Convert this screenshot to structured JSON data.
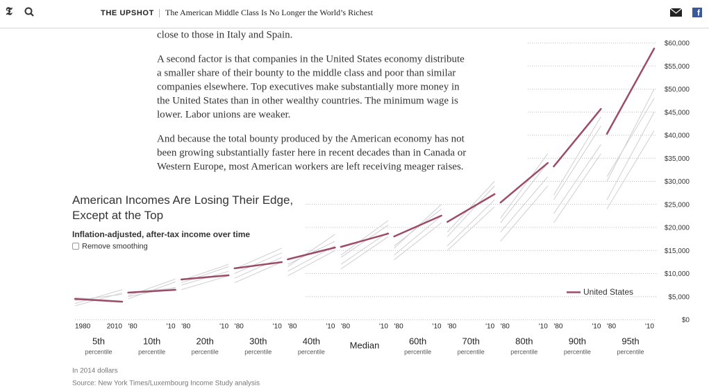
{
  "header": {
    "section": "THE UPSHOT",
    "headline": "The American Middle Class Is No Longer the World’s Richest"
  },
  "article": {
    "paragraphs": [
      [
        "close to those in Italy and Spain."
      ],
      [
        "A second factor is that companies in the United States economy distribute",
        "a smaller share of their bounty to the middle class and poor than similar",
        "companies elsewhere. Top executives make substantially more money in",
        "the United States than in other wealthy countries. The minimum wage is",
        "lower. Labor unions are weaker."
      ],
      [
        "And because the total bounty produced by the American economy has not",
        "been growing substantially faster here in recent decades than in Canada or",
        "Western Europe, most American workers are left receiving meager raises."
      ]
    ]
  },
  "chart_data": {
    "type": "small-multiples-line",
    "title": "American Incomes Are Losing Their Edge, Except at the Top",
    "subtitle": "Inflation-adjusted, after-tax income over time",
    "toggle": "Remove smoothing",
    "legend": "United States",
    "note": "In 2014 dollars",
    "source": "Source: New York Times/Luxembourg Income Study analysis",
    "us_color": "#9c4b69",
    "other_color": "#cfcfcf",
    "ylim": [
      0,
      60000
    ],
    "yticks": [
      {
        "value": 0,
        "label": "$0"
      },
      {
        "value": 5000,
        "label": "$5,000"
      },
      {
        "value": 10000,
        "label": "$10,000"
      },
      {
        "value": 15000,
        "label": "$15,000"
      },
      {
        "value": 20000,
        "label": "$20,000"
      },
      {
        "value": 25000,
        "label": "$25,000"
      },
      {
        "value": 30000,
        "label": "$30,000"
      },
      {
        "value": 35000,
        "label": "$35,000"
      },
      {
        "value": 40000,
        "label": "$40,000"
      },
      {
        "value": 45000,
        "label": "$45,000"
      },
      {
        "value": 50000,
        "label": "$50,000"
      },
      {
        "value": 55000,
        "label": "$55,000"
      },
      {
        "value": 60000,
        "label": "$60,000"
      }
    ],
    "grid": true,
    "x": [
      1980,
      2010
    ],
    "panels": [
      {
        "label": "5th",
        "sublabel": "percentile",
        "xticks": [
          {
            "value": 1980,
            "label": "1980"
          },
          {
            "value": 2010,
            "label": "2010"
          }
        ],
        "united_states": [
          4500,
          3900
        ],
        "others": [
          [
            4200,
            5500
          ],
          [
            3500,
            6500
          ],
          [
            4800,
            4000
          ],
          [
            3000,
            5800
          ]
        ]
      },
      {
        "label": "10th",
        "sublabel": "percentile",
        "xticks": [
          {
            "value": 1980,
            "label": "'80"
          },
          {
            "value": 2010,
            "label": "'10"
          }
        ],
        "united_states": [
          5860,
          6470
        ],
        "others": [
          [
            5000,
            7000
          ],
          [
            4500,
            8200
          ],
          [
            6000,
            6800
          ],
          [
            5200,
            8800
          ]
        ]
      },
      {
        "label": "20th",
        "sublabel": "percentile",
        "xticks": [
          {
            "value": 1980,
            "label": "'80"
          },
          {
            "value": 2010,
            "label": "'10"
          }
        ],
        "united_states": [
          8720,
          9620
        ],
        "others": [
          [
            7500,
            10500
          ],
          [
            8000,
            11500
          ],
          [
            6500,
            9500
          ],
          [
            8500,
            12000
          ]
        ]
      },
      {
        "label": "30th",
        "sublabel": "percentile",
        "xticks": [
          {
            "value": 1980,
            "label": "'80"
          },
          {
            "value": 2010,
            "label": "'10"
          }
        ],
        "united_states": [
          11130,
          12480
        ],
        "others": [
          [
            9000,
            13500
          ],
          [
            10000,
            14500
          ],
          [
            8000,
            12500
          ],
          [
            11000,
            15500
          ]
        ]
      },
      {
        "label": "40th",
        "sublabel": "percentile",
        "xticks": [
          {
            "value": 1980,
            "label": "'80"
          },
          {
            "value": 2010,
            "label": "'10"
          }
        ],
        "united_states": [
          13080,
          15640
        ],
        "others": [
          [
            10500,
            16000
          ],
          [
            12000,
            17000
          ],
          [
            9500,
            15000
          ],
          [
            11500,
            18500
          ]
        ]
      },
      {
        "label": "Median",
        "xticks": [
          {
            "value": 1980,
            "label": "'80"
          },
          {
            "value": 2010,
            "label": "'10"
          }
        ],
        "united_states": [
          15790,
          18650
        ],
        "others": [
          [
            12000,
            19000
          ],
          [
            13500,
            20500
          ],
          [
            11000,
            18000
          ],
          [
            14000,
            21500
          ]
        ]
      },
      {
        "label": "60th",
        "sublabel": "percentile",
        "xticks": [
          {
            "value": 1980,
            "label": "'80"
          },
          {
            "value": 2010,
            "label": "'10"
          }
        ],
        "united_states": [
          18050,
          22560
        ],
        "others": [
          [
            14000,
            22500
          ],
          [
            16000,
            24000
          ],
          [
            13000,
            21000
          ],
          [
            15500,
            25000
          ]
        ]
      },
      {
        "label": "70th",
        "sublabel": "percentile",
        "xticks": [
          {
            "value": 1980,
            "label": "'80"
          },
          {
            "value": 2010,
            "label": "'10"
          }
        ],
        "united_states": [
          21200,
          27220
        ],
        "others": [
          [
            16000,
            26000
          ],
          [
            18000,
            29000
          ],
          [
            15000,
            24500
          ],
          [
            19000,
            30000
          ]
        ]
      },
      {
        "label": "80th",
        "sublabel": "percentile",
        "xticks": [
          {
            "value": 1980,
            "label": "'80"
          },
          {
            "value": 2010,
            "label": "'10"
          }
        ],
        "united_states": [
          25410,
          33980
        ],
        "others": [
          [
            19000,
            31000
          ],
          [
            21000,
            34000
          ],
          [
            17000,
            29000
          ],
          [
            22000,
            36000
          ]
        ]
      },
      {
        "label": "90th",
        "sublabel": "percentile",
        "xticks": [
          {
            "value": 1980,
            "label": "'80"
          },
          {
            "value": 2010,
            "label": "'10"
          }
        ],
        "united_states": [
          33230,
          45710
        ],
        "others": [
          [
            23000,
            38000
          ],
          [
            26000,
            42000
          ],
          [
            21000,
            36000
          ],
          [
            27000,
            44000
          ]
        ]
      },
      {
        "label": "95th",
        "sublabel": "percentile",
        "xticks": [
          {
            "value": 1980,
            "label": "'80"
          },
          {
            "value": 2010,
            "label": "'10"
          }
        ],
        "united_states": [
          40300,
          58800
        ],
        "others": [
          [
            26000,
            45000
          ],
          [
            30000,
            50000
          ],
          [
            24000,
            41000
          ],
          [
            31000,
            48000
          ]
        ]
      }
    ]
  }
}
